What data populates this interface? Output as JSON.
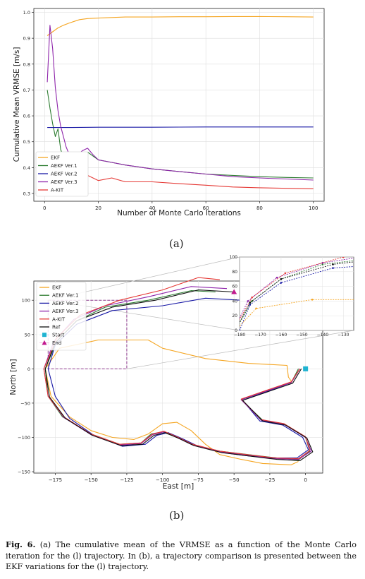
{
  "figure_a": {
    "sublabel": "(a)",
    "chart_data": {
      "type": "line",
      "xlabel": "Number of Monte Carlo Iterations",
      "ylabel": "Cumulative Mean VRMSE [m/s]",
      "xlim": [
        -4,
        104
      ],
      "ylim": [
        0.27,
        1.015
      ],
      "xticks": [
        0,
        20,
        40,
        60,
        80,
        100
      ],
      "yticks": [
        0.3,
        0.4,
        0.5,
        0.6,
        0.7,
        0.8,
        0.9,
        1.0
      ],
      "ytick_labels": [
        "0.3",
        "0.4",
        "0.5",
        "0.6",
        "0.7",
        "0.8",
        "0.9",
        "1.0"
      ],
      "grid": true,
      "legend_position": "lower-left",
      "series": [
        {
          "name": "EKF",
          "color": "#f5a623",
          "x": [
            1,
            3,
            5,
            7,
            9,
            11,
            13,
            16,
            20,
            25,
            30,
            40,
            50,
            60,
            70,
            80,
            90,
            100
          ],
          "y": [
            0.91,
            0.925,
            0.94,
            0.95,
            0.958,
            0.965,
            0.972,
            0.976,
            0.978,
            0.98,
            0.982,
            0.982,
            0.983,
            0.983,
            0.984,
            0.984,
            0.983,
            0.982
          ]
        },
        {
          "name": "AEKF Ver.1",
          "color": "#2e7d32",
          "x": [
            1,
            2,
            3,
            4,
            5,
            6,
            7,
            8,
            9,
            10,
            12,
            14,
            16,
            18,
            20,
            25,
            30,
            40,
            50,
            60,
            70,
            80,
            90,
            100
          ],
          "y": [
            0.7,
            0.63,
            0.57,
            0.52,
            0.55,
            0.47,
            0.44,
            0.42,
            0.405,
            0.395,
            0.42,
            0.45,
            0.46,
            0.445,
            0.43,
            0.42,
            0.41,
            0.395,
            0.385,
            0.375,
            0.37,
            0.365,
            0.362,
            0.36
          ]
        },
        {
          "name": "AEKF Ver.2",
          "color": "#1a1aa6",
          "x": [
            1,
            10,
            20,
            40,
            60,
            80,
            100
          ],
          "y": [
            0.555,
            0.555,
            0.556,
            0.556,
            0.557,
            0.557,
            0.557
          ]
        },
        {
          "name": "AEKF Ver.3",
          "color": "#8e24aa",
          "x": [
            1,
            2,
            3,
            4,
            5,
            6,
            7,
            8,
            9,
            10,
            12,
            14,
            16,
            18,
            20,
            25,
            30,
            40,
            50,
            60,
            70,
            80,
            90,
            100
          ],
          "y": [
            0.73,
            0.95,
            0.86,
            0.71,
            0.62,
            0.56,
            0.52,
            0.48,
            0.455,
            0.44,
            0.44,
            0.465,
            0.475,
            0.45,
            0.43,
            0.42,
            0.41,
            0.395,
            0.385,
            0.375,
            0.365,
            0.36,
            0.356,
            0.352
          ]
        },
        {
          "name": "A-KIT",
          "color": "#e53935",
          "x": [
            14,
            16,
            18,
            20,
            25,
            30,
            40,
            50,
            60,
            70,
            80,
            90,
            100
          ],
          "y": [
            0.4,
            0.37,
            0.36,
            0.35,
            0.36,
            0.345,
            0.345,
            0.338,
            0.332,
            0.325,
            0.322,
            0.32,
            0.318
          ]
        }
      ]
    }
  },
  "figure_b": {
    "sublabel": "(b)",
    "chart_data": {
      "type": "line",
      "xlabel": "East [m]",
      "ylabel": "North [m]",
      "xlim": [
        -190,
        12
      ],
      "ylim": [
        -152,
        128
      ],
      "xticks": [
        -175,
        -150,
        -125,
        -100,
        -75,
        -50,
        -25,
        0
      ],
      "yticks": [
        -150,
        -100,
        -50,
        0,
        50,
        100
      ],
      "grid": true,
      "legend_position": "upper-left",
      "legend": [
        "EKF",
        "AEKF Ver.1",
        "AEKF Ver.2",
        "AEKF Ver.3",
        "A-KIT",
        "Ref",
        "Start",
        "End"
      ],
      "start_marker": {
        "x": 0,
        "y": 0,
        "color": "#1fb3d1"
      },
      "end_marker": {
        "x": -50,
        "y": 112,
        "color": "#c2188f"
      },
      "zoom_box": {
        "x": [
          -180,
          -125
        ],
        "y": [
          0,
          100
        ]
      },
      "inset": {
        "xlim": [
          -180,
          -125
        ],
        "ylim": [
          0,
          100
        ],
        "xticks": [
          -180,
          -170,
          -160,
          -150,
          -140,
          -130
        ],
        "yticks": [
          0,
          20,
          40,
          60,
          80,
          100
        ]
      },
      "series": [
        {
          "name": "EKF",
          "color": "#f5a623",
          "x": [
            -10,
            -12,
            -13,
            -40,
            -70,
            -100,
            -110,
            -145,
            -172,
            -182,
            -178,
            -165,
            -150,
            -135,
            -120,
            -110,
            -100,
            -90,
            -80,
            -70,
            -60,
            -45,
            -30,
            -10,
            -5
          ],
          "y": [
            -18,
            -12,
            5,
            8,
            15,
            30,
            42,
            42,
            30,
            0,
            -40,
            -70,
            -90,
            -100,
            -103,
            -95,
            -80,
            -78,
            -90,
            -110,
            -125,
            -132,
            -138,
            -140,
            -135
          ]
        },
        {
          "name": "AEKF Ver.1",
          "color": "#2e7d32",
          "x": [
            -63,
            -80,
            -110,
            -140,
            -160,
            -174,
            -182,
            -180,
            -170,
            -150,
            -130,
            -115,
            -108,
            -100,
            -90,
            -80,
            -60,
            -40,
            -20,
            -5,
            3,
            0,
            -15,
            -30,
            -45,
            -10,
            -5
          ],
          "y": [
            112,
            114,
            100,
            90,
            70,
            40,
            0,
            -40,
            -70,
            -95,
            -110,
            -108,
            -95,
            -92,
            -100,
            -110,
            -120,
            -125,
            -130,
            -133,
            -120,
            -100,
            -80,
            -75,
            -45,
            -20,
            0
          ]
        },
        {
          "name": "AEKF Ver.2",
          "color": "#1a1aa6",
          "x": [
            -45,
            -70,
            -100,
            -135,
            -160,
            -175,
            -180,
            -175,
            -165,
            -148,
            -128,
            -112,
            -104,
            -96,
            -86,
            -76,
            -58,
            -40,
            -20,
            -6,
            2,
            -2,
            -16,
            -32,
            -44,
            -10,
            -4
          ],
          "y": [
            100,
            103,
            92,
            85,
            65,
            35,
            0,
            -40,
            -72,
            -97,
            -113,
            -110,
            -97,
            -93,
            -102,
            -112,
            -122,
            -127,
            -130,
            -130,
            -118,
            -100,
            -82,
            -76,
            -46,
            -20,
            0
          ]
        },
        {
          "name": "AEKF Ver.3",
          "color": "#8e24aa",
          "x": [
            -55,
            -80,
            -110,
            -140,
            -162,
            -176,
            -183,
            -180,
            -169,
            -150,
            -130,
            -115,
            -107,
            -99,
            -89,
            -79,
            -60,
            -41,
            -21,
            -5,
            4,
            0,
            -15,
            -31,
            -45,
            -10,
            -4
          ],
          "y": [
            117,
            120,
            105,
            92,
            72,
            40,
            0,
            -40,
            -71,
            -96,
            -111,
            -109,
            -96,
            -92,
            -101,
            -111,
            -121,
            -126,
            -131,
            -132,
            -120,
            -100,
            -81,
            -75,
            -45,
            -20,
            0
          ]
        },
        {
          "name": "A-KIT",
          "color": "#e53935",
          "x": [
            -60,
            -75,
            -100,
            -130,
            -158,
            -174,
            -183,
            -180,
            -169,
            -150,
            -130,
            -115,
            -107,
            -99,
            -89,
            -79,
            -60,
            -41,
            -21,
            -5,
            3,
            0,
            -15,
            -31,
            -45,
            -10,
            -4
          ],
          "y": [
            130,
            133,
            115,
            100,
            78,
            45,
            0,
            -40,
            -70,
            -95,
            -110,
            -108,
            -95,
            -91,
            -100,
            -110,
            -120,
            -125,
            -130,
            -131,
            -119,
            -99,
            -80,
            -74,
            -44,
            -19,
            0
          ]
        },
        {
          "name": "Ref",
          "color": "#111111",
          "x": [
            -50,
            -75,
            -105,
            -135,
            -160,
            -175,
            -182,
            -179,
            -168,
            -149,
            -129,
            -114,
            -106,
            -98,
            -88,
            -78,
            -59,
            -40,
            -20,
            -4,
            5,
            1,
            -14,
            -30,
            -44,
            -9,
            -3
          ],
          "y": [
            112,
            115,
            100,
            90,
            70,
            38,
            0,
            -41,
            -72,
            -97,
            -112,
            -110,
            -97,
            -93,
            -102,
            -112,
            -122,
            -127,
            -132,
            -134,
            -121,
            -101,
            -82,
            -76,
            -46,
            -21,
            0
          ]
        }
      ]
    }
  },
  "caption": {
    "label": "Fig. 6.",
    "text": " (a) The cumulative mean of the VRMSE as a function of the Monte Carlo iteration for the (l) trajectory. In (b), a trajectory comparison is presented between the EKF variations for the (l) trajectory."
  }
}
